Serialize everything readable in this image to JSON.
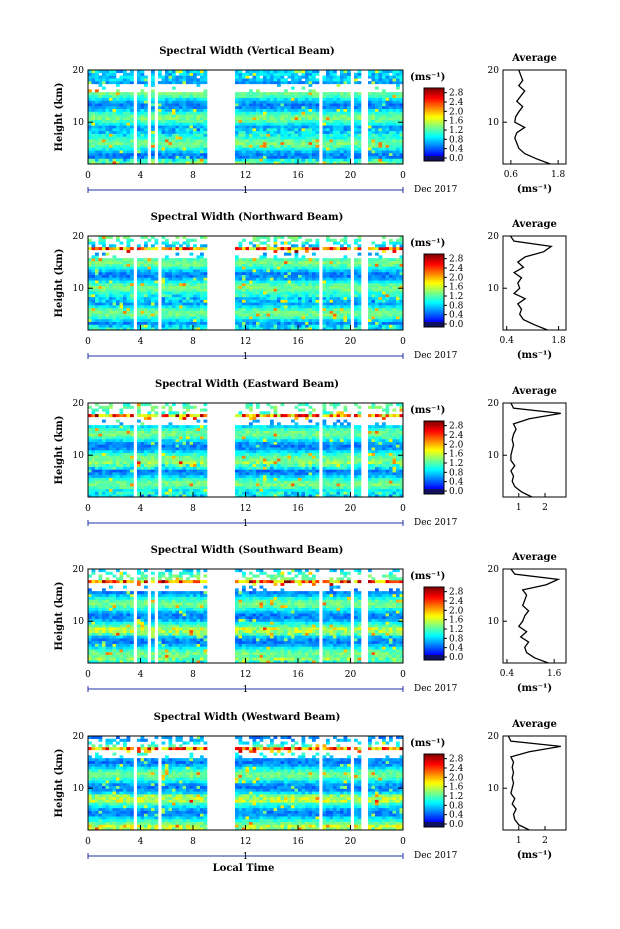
{
  "chart_data": [
    {
      "type": "heatmap",
      "title": "Spectral Width (Vertical Beam)",
      "ylabel": "Height (km)",
      "ylim": [
        2,
        20
      ],
      "yticks": [
        10,
        20
      ],
      "x_ticks": [
        "0",
        "4",
        "8",
        "12",
        "16",
        "20",
        "0"
      ],
      "date_marker": "1",
      "date_label": "Dec 2017",
      "colorbar": {
        "unit": "(ms⁻¹)",
        "ticks": [
          "0.0",
          "0.4",
          "0.8",
          "1.2",
          "1.6",
          "2.0",
          "2.4",
          "2.8"
        ],
        "range": [
          0,
          3.0
        ]
      },
      "average": {
        "title": "Average",
        "xunit": "(ms⁻¹)",
        "xticks": [
          "0.6",
          "1.8"
        ],
        "xlim": [
          0.4,
          2.0
        ],
        "height": [
          2,
          3,
          4,
          5,
          6,
          7,
          8,
          9,
          10,
          11,
          12,
          13,
          14,
          15,
          16,
          17,
          18,
          19,
          20
        ],
        "values": [
          1.6,
          1.25,
          0.95,
          0.8,
          0.75,
          0.7,
          0.75,
          0.95,
          0.7,
          0.72,
          0.8,
          0.9,
          0.75,
          0.85,
          0.95,
          0.8,
          0.9,
          0.85,
          0.8
        ]
      }
    },
    {
      "type": "heatmap",
      "title": "Spectral Width (Northward Beam)",
      "ylabel": "Height (km)",
      "ylim": [
        2,
        20
      ],
      "yticks": [
        10,
        20
      ],
      "x_ticks": [
        "0",
        "4",
        "8",
        "12",
        "16",
        "20",
        "0"
      ],
      "date_marker": "1",
      "date_label": "Dec 2017",
      "colorbar": {
        "unit": "(ms⁻¹)",
        "ticks": [
          "0.0",
          "0.4",
          "0.8",
          "1.2",
          "1.6",
          "2.0",
          "2.4",
          "2.8"
        ],
        "range": [
          0,
          3.0
        ]
      },
      "average": {
        "title": "Average",
        "xunit": "(ms⁻¹)",
        "xticks": [
          "0.4",
          "1.8"
        ],
        "xlim": [
          0.3,
          2.0
        ],
        "height": [
          2,
          3,
          4,
          5,
          6,
          7,
          8,
          9,
          10,
          11,
          12,
          13,
          14,
          15,
          16,
          17,
          18,
          19,
          20
        ],
        "values": [
          1.5,
          1.15,
          0.85,
          0.75,
          0.8,
          0.7,
          0.9,
          0.6,
          0.75,
          0.7,
          0.8,
          0.6,
          0.85,
          0.7,
          0.9,
          1.4,
          1.6,
          0.6,
          0.5
        ]
      }
    },
    {
      "type": "heatmap",
      "title": "Spectral Width (Eastward Beam)",
      "ylabel": "Height (km)",
      "ylim": [
        2,
        20
      ],
      "yticks": [
        10,
        20
      ],
      "x_ticks": [
        "0",
        "4",
        "8",
        "12",
        "16",
        "20",
        "0"
      ],
      "date_marker": "1",
      "date_label": "Dec 2017",
      "colorbar": {
        "unit": "(ms⁻¹)",
        "ticks": [
          "0.0",
          "0.4",
          "0.8",
          "1.2",
          "1.6",
          "2.0",
          "2.4",
          "2.8"
        ],
        "range": [
          0,
          3.0
        ]
      },
      "average": {
        "title": "Average",
        "xunit": "",
        "xticks": [
          "1",
          "2"
        ],
        "xlim": [
          0.4,
          2.8
        ],
        "height": [
          2,
          3,
          4,
          5,
          6,
          7,
          8,
          9,
          10,
          11,
          12,
          13,
          14,
          15,
          16,
          17,
          18,
          19,
          20
        ],
        "values": [
          1.5,
          1.1,
          0.85,
          0.75,
          0.8,
          0.7,
          0.85,
          0.7,
          0.7,
          0.75,
          0.8,
          0.75,
          0.8,
          0.9,
          0.8,
          1.4,
          2.6,
          0.8,
          0.7
        ]
      }
    },
    {
      "type": "heatmap",
      "title": "Spectral Width (Southward Beam)",
      "ylabel": "Height (km)",
      "ylim": [
        2,
        20
      ],
      "yticks": [
        10,
        20
      ],
      "x_ticks": [
        "0",
        "4",
        "8",
        "12",
        "16",
        "20",
        "0"
      ],
      "date_marker": "1",
      "date_label": "Dec 2017",
      "colorbar": {
        "unit": "(ms⁻¹)",
        "ticks": [
          "0.0",
          "0.4",
          "0.8",
          "1.2",
          "1.6",
          "2.0",
          "2.4",
          "2.8"
        ],
        "range": [
          0,
          3.0
        ]
      },
      "average": {
        "title": "Average",
        "xunit": "(ms⁻¹)",
        "xticks": [
          "0.4",
          "1.6"
        ],
        "xlim": [
          0.3,
          1.9
        ],
        "height": [
          2,
          3,
          4,
          5,
          6,
          7,
          8,
          9,
          10,
          11,
          12,
          13,
          14,
          15,
          16,
          17,
          18,
          19,
          20
        ],
        "values": [
          1.45,
          1.1,
          0.9,
          0.85,
          0.95,
          0.75,
          0.9,
          0.7,
          0.8,
          0.85,
          0.95,
          0.8,
          0.85,
          0.9,
          0.8,
          1.4,
          1.7,
          0.6,
          0.5
        ]
      }
    },
    {
      "type": "heatmap",
      "title": "Spectral Width (Westward Beam)",
      "ylabel": "Height (km)",
      "ylim": [
        2,
        20
      ],
      "yticks": [
        10,
        20
      ],
      "x_ticks": [
        "0",
        "4",
        "8",
        "12",
        "16",
        "20",
        "0"
      ],
      "date_marker": "1",
      "date_label": "Dec 2017",
      "xlabel": "Local Time",
      "colorbar": {
        "unit": "(ms⁻¹)",
        "ticks": [
          "0.0",
          "0.4",
          "0.8",
          "1.2",
          "1.6",
          "2.0",
          "2.4",
          "2.8"
        ],
        "range": [
          0,
          3.0
        ]
      },
      "average": {
        "title": "Average",
        "xunit": "(ms⁻¹)",
        "xticks": [
          "1",
          "2"
        ],
        "xlim": [
          0.4,
          2.8
        ],
        "height": [
          2,
          3,
          4,
          5,
          6,
          7,
          8,
          9,
          10,
          11,
          12,
          13,
          14,
          15,
          16,
          17,
          18,
          19,
          20
        ],
        "values": [
          1.4,
          1.0,
          0.85,
          0.8,
          0.9,
          0.75,
          0.85,
          0.7,
          0.75,
          0.8,
          0.75,
          0.8,
          0.75,
          0.8,
          0.7,
          1.4,
          2.6,
          0.7,
          0.6
        ]
      }
    }
  ]
}
